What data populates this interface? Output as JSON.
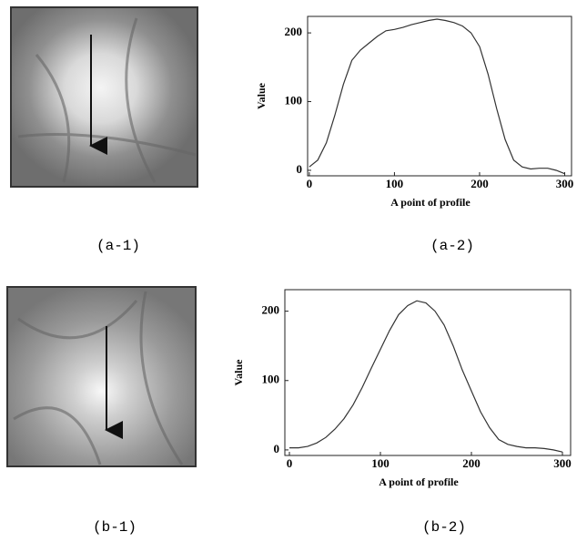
{
  "chart_data": [
    {
      "type": "line",
      "x_label": "A point of profile",
      "y_label": "Value",
      "x": [
        0,
        10,
        20,
        30,
        40,
        50,
        60,
        70,
        80,
        90,
        100,
        110,
        120,
        130,
        140,
        150,
        160,
        170,
        180,
        190,
        200,
        210,
        220,
        230,
        240,
        250,
        260,
        270,
        280,
        290,
        300
      ],
      "values": [
        5,
        15,
        40,
        80,
        125,
        160,
        175,
        185,
        195,
        203,
        205,
        208,
        212,
        215,
        218,
        220,
        218,
        215,
        210,
        200,
        180,
        140,
        90,
        45,
        15,
        5,
        2,
        3,
        3,
        0,
        -5
      ],
      "color": "#333333",
      "xlim": [
        -2,
        308
      ],
      "xticks": [
        0,
        100,
        200,
        300
      ],
      "ylim": [
        -8,
        224
      ],
      "yticks": [
        0,
        100,
        200
      ]
    },
    {
      "type": "line",
      "x_label": "A point of profile",
      "y_label": "Value",
      "x": [
        0,
        10,
        20,
        30,
        40,
        50,
        60,
        70,
        80,
        90,
        100,
        110,
        120,
        130,
        140,
        150,
        160,
        170,
        180,
        190,
        200,
        210,
        220,
        230,
        240,
        250,
        260,
        270,
        280,
        290,
        300
      ],
      "values": [
        3,
        3,
        5,
        10,
        18,
        30,
        45,
        65,
        90,
        118,
        145,
        172,
        195,
        208,
        215,
        212,
        200,
        180,
        150,
        115,
        85,
        55,
        32,
        15,
        8,
        5,
        3,
        3,
        2,
        0,
        -3
      ],
      "color": "#333333",
      "xlim": [
        -5,
        309
      ],
      "xticks": [
        0,
        100,
        200,
        300
      ],
      "ylim": [
        -8,
        231
      ],
      "yticks": [
        0,
        100,
        200
      ]
    }
  ],
  "captions": [
    "(a-1)",
    "(a-2)",
    "(b-1)",
    "(b-2)"
  ]
}
